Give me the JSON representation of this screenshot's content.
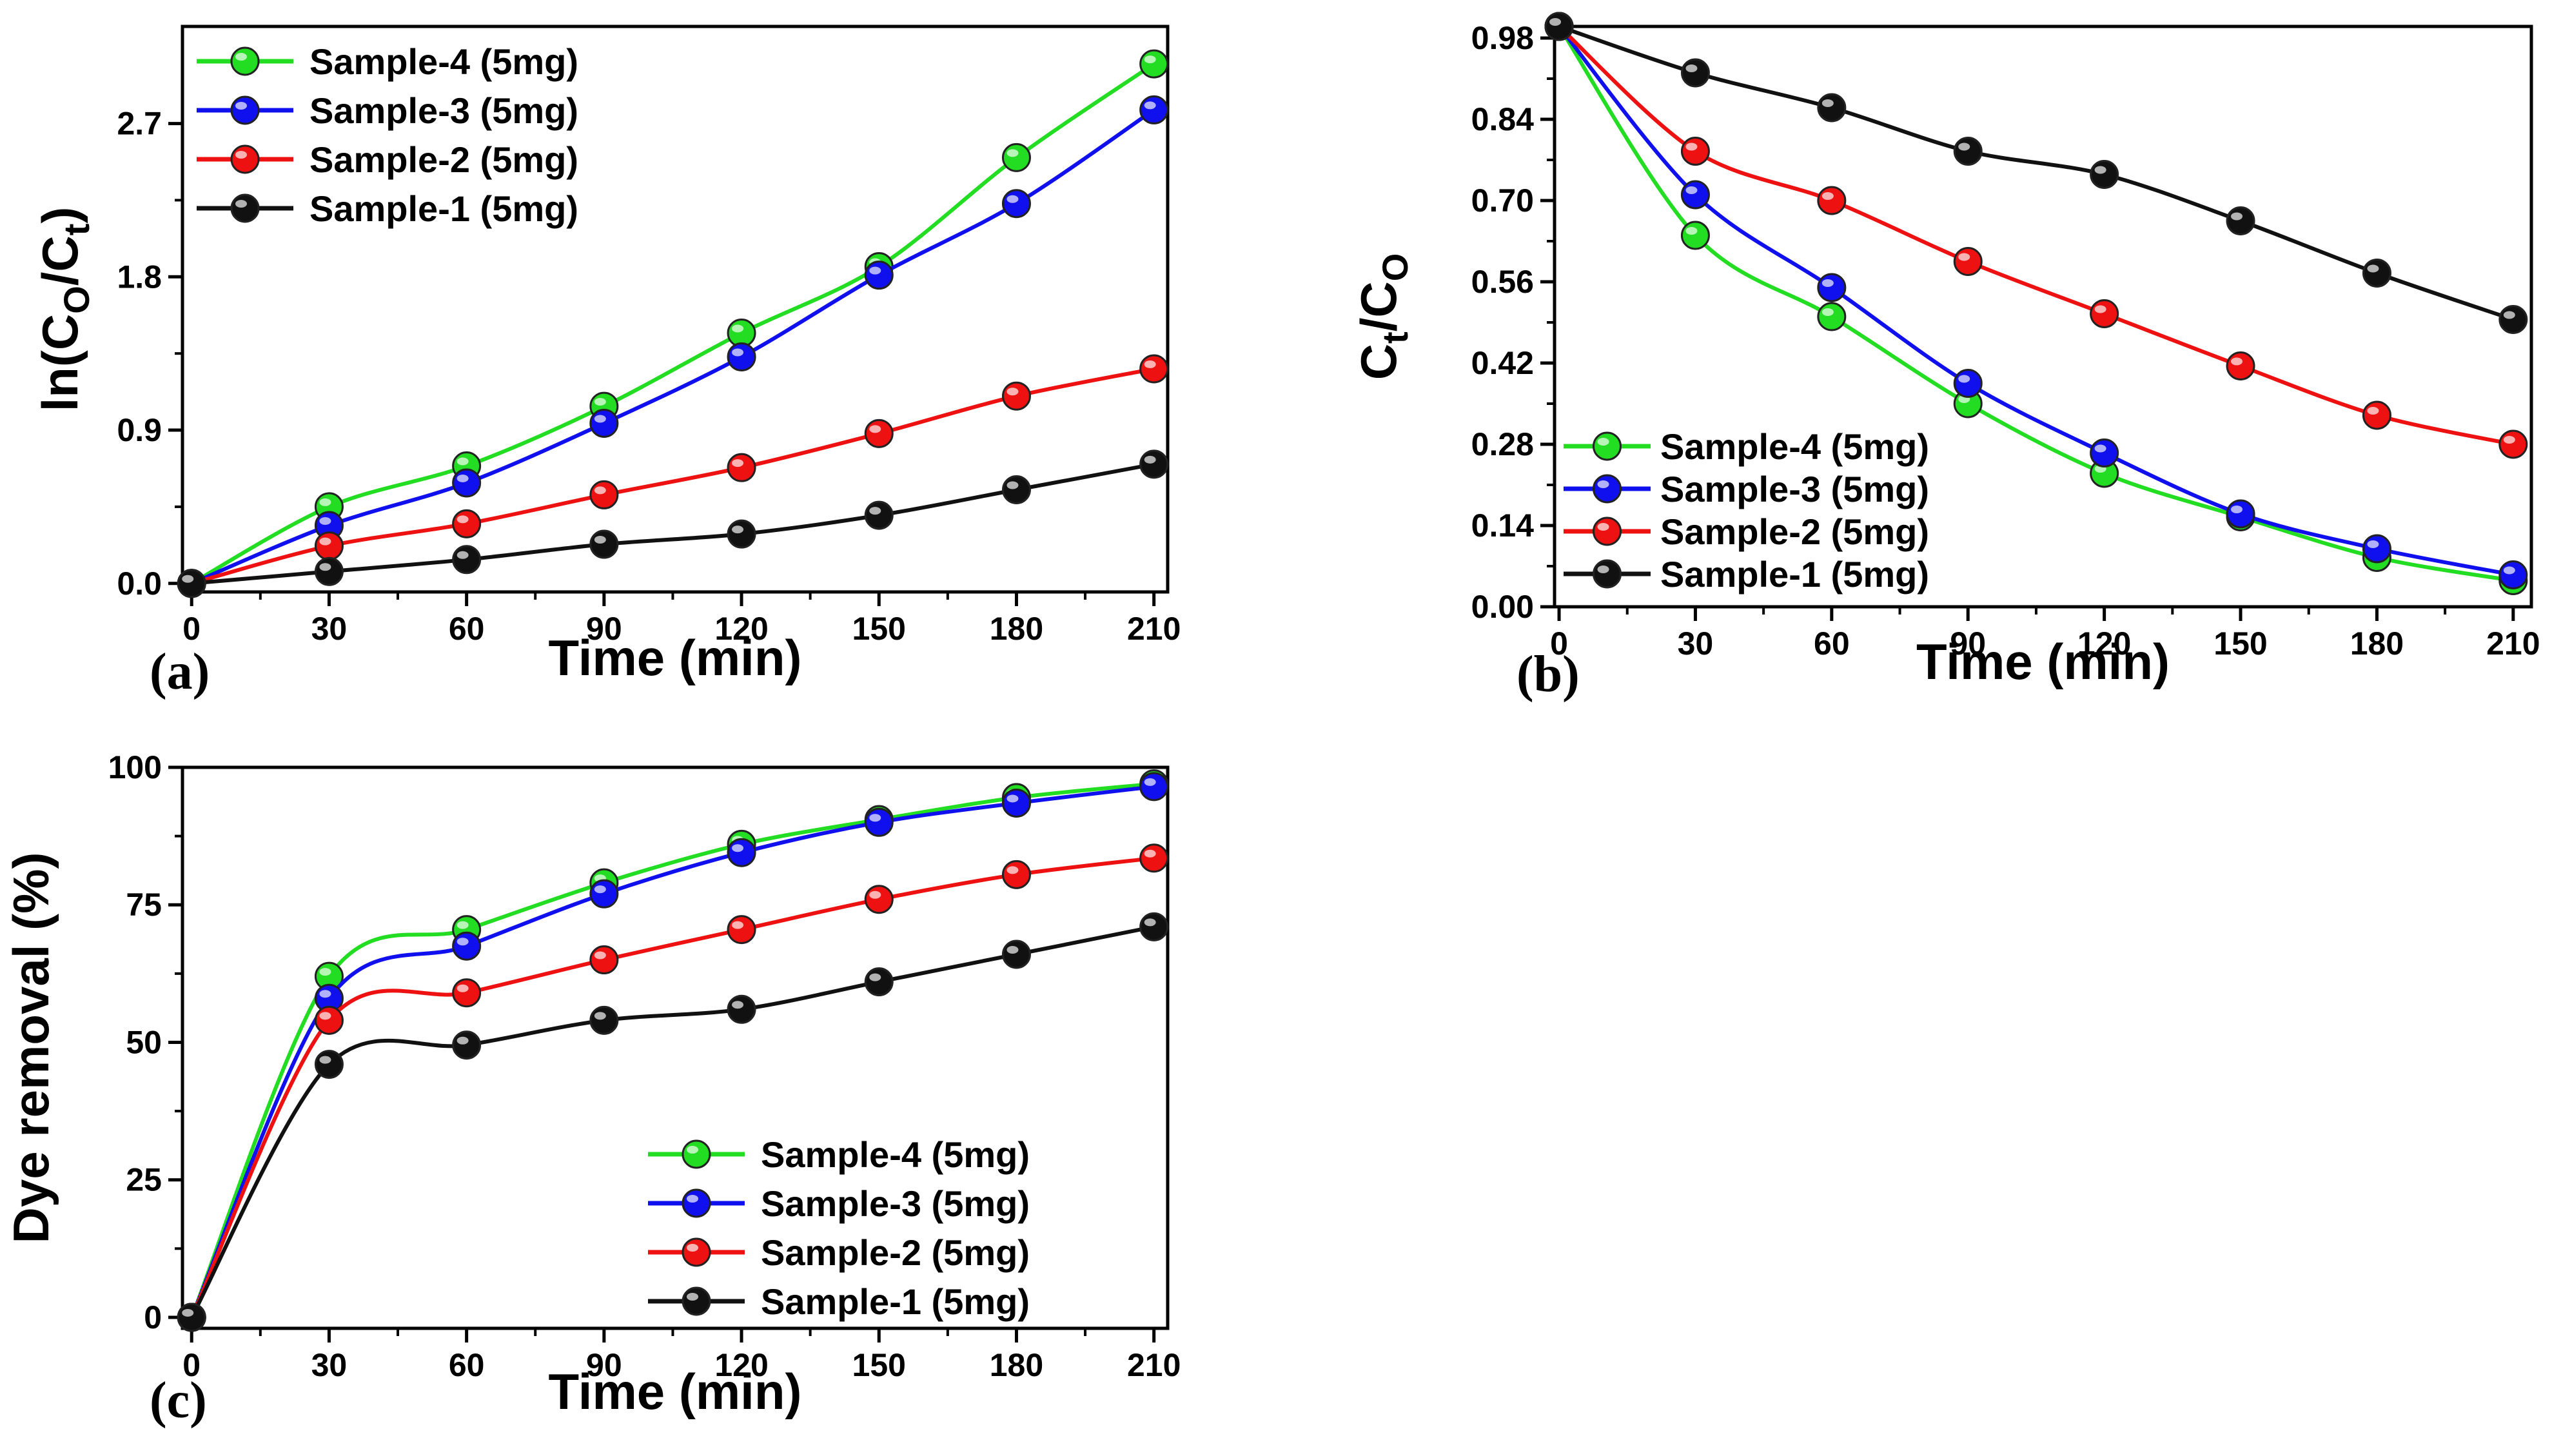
{
  "figure": {
    "panels": [
      {
        "id": "a",
        "label": "(a)"
      },
      {
        "id": "b",
        "label": "(b)"
      },
      {
        "id": "c",
        "label": "(c)"
      }
    ]
  },
  "chart_data": [
    {
      "type": "line",
      "panel": "(a)",
      "title": "",
      "xlabel": "Time (min)",
      "ylabel": "ln(Co/Ct)",
      "ylabel_parts": {
        "main": "ln(C",
        "sub1": "O",
        "mid": "/C",
        "sub2": "t",
        "end": ")"
      },
      "x": [
        0,
        30,
        60,
        90,
        120,
        150,
        180,
        210
      ],
      "xticks": [
        "0",
        "30",
        "60",
        "90",
        "120",
        "150",
        "180",
        "210"
      ],
      "yticks": [
        "0.0",
        "0.9",
        "1.8",
        "2.7"
      ],
      "ytick_values": [
        0,
        0.9,
        1.8,
        2.7
      ],
      "xlim": [
        -2,
        213
      ],
      "ylim": [
        -0.05,
        3.27
      ],
      "legend_position": "top-left",
      "series": [
        {
          "name": "Sample-4 (5mg)",
          "color": "#22dd22",
          "values": [
            0,
            0.45,
            0.69,
            1.04,
            1.47,
            1.86,
            2.5,
            3.05
          ]
        },
        {
          "name": "Sample-3 (5mg)",
          "color": "#1010ee",
          "values": [
            0,
            0.34,
            0.59,
            0.94,
            1.33,
            1.81,
            2.23,
            2.78
          ]
        },
        {
          "name": "Sample-2 (5mg)",
          "color": "#ee1111",
          "values": [
            0,
            0.22,
            0.35,
            0.52,
            0.68,
            0.88,
            1.1,
            1.26
          ]
        },
        {
          "name": "Sample-1 (5mg)",
          "color": "#111111",
          "values": [
            0,
            0.07,
            0.14,
            0.23,
            0.29,
            0.4,
            0.55,
            0.7
          ]
        }
      ]
    },
    {
      "type": "line",
      "panel": "(b)",
      "title": "",
      "xlabel": "Time (min)",
      "ylabel": "Ct/Co",
      "ylabel_parts": {
        "main": "C",
        "sub1": "t",
        "mid": "/C",
        "sub2": "O"
      },
      "x": [
        0,
        30,
        60,
        90,
        120,
        150,
        180,
        210
      ],
      "xticks": [
        "0",
        "30",
        "60",
        "90",
        "120",
        "150",
        "180",
        "210"
      ],
      "yticks": [
        "0.00",
        "0.14",
        "0.28",
        "0.42",
        "0.56",
        "0.70",
        "0.84",
        "0.98"
      ],
      "ytick_values": [
        0,
        0.14,
        0.28,
        0.42,
        0.56,
        0.7,
        0.84,
        0.98
      ],
      "xlim": [
        -1,
        214
      ],
      "ylim": [
        0,
        1.0
      ],
      "legend_position": "bottom-left",
      "series": [
        {
          "name": "Sample-4 (5mg)",
          "color": "#22dd22",
          "values": [
            1.0,
            0.64,
            0.5,
            0.35,
            0.23,
            0.155,
            0.085,
            0.045
          ]
        },
        {
          "name": "Sample-3 (5mg)",
          "color": "#1010ee",
          "values": [
            1.0,
            0.71,
            0.55,
            0.385,
            0.265,
            0.16,
            0.1,
            0.055
          ]
        },
        {
          "name": "Sample-2 (5mg)",
          "color": "#ee1111",
          "values": [
            1.0,
            0.785,
            0.7,
            0.595,
            0.505,
            0.415,
            0.33,
            0.28
          ]
        },
        {
          "name": "Sample-1 (5mg)",
          "color": "#111111",
          "values": [
            1.0,
            0.92,
            0.86,
            0.785,
            0.745,
            0.665,
            0.575,
            0.495
          ]
        }
      ]
    },
    {
      "type": "line",
      "panel": "(c)",
      "title": "",
      "xlabel": "Time (min)",
      "ylabel": "Dye removal (%)",
      "x": [
        0,
        30,
        60,
        90,
        120,
        150,
        180,
        210
      ],
      "xticks": [
        "0",
        "30",
        "60",
        "90",
        "120",
        "150",
        "180",
        "210"
      ],
      "yticks": [
        "0",
        "25",
        "50",
        "75",
        "100"
      ],
      "ytick_values": [
        0,
        25,
        50,
        75,
        100
      ],
      "xlim": [
        -2,
        213
      ],
      "ylim": [
        -2,
        100
      ],
      "legend_position": "bottom-right",
      "series": [
        {
          "name": "Sample-4 (5mg)",
          "color": "#22dd22",
          "values": [
            0,
            62,
            70.5,
            79,
            86,
            90.5,
            94.5,
            97
          ]
        },
        {
          "name": "Sample-3 (5mg)",
          "color": "#1010ee",
          "values": [
            0,
            58,
            67.5,
            77,
            84.5,
            90,
            93.5,
            96.5
          ]
        },
        {
          "name": "Sample-2 (5mg)",
          "color": "#ee1111",
          "values": [
            0,
            54,
            59,
            65,
            70.5,
            76,
            80.5,
            83.5
          ]
        },
        {
          "name": "Sample-1 (5mg)",
          "color": "#111111",
          "values": [
            0,
            46,
            49.5,
            54,
            56,
            61,
            66,
            71
          ]
        }
      ]
    }
  ]
}
